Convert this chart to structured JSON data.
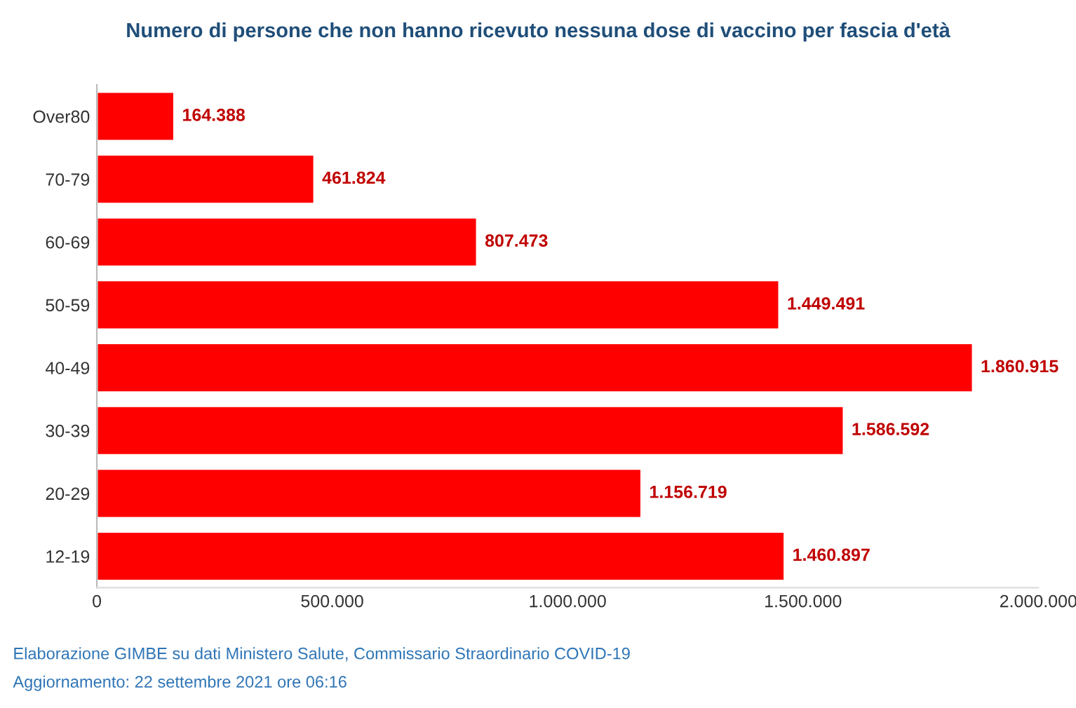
{
  "chart_data": {
    "type": "bar",
    "orientation": "horizontal",
    "title": "Numero di persone che non hanno ricevuto nessuna dose di vaccino per fascia d'età",
    "categories": [
      "Over80",
      "70-79",
      "60-69",
      "50-59",
      "40-49",
      "30-39",
      "20-29",
      "12-19"
    ],
    "values": [
      164388,
      461824,
      807473,
      1449491,
      1860915,
      1586592,
      1156719,
      1460897
    ],
    "value_labels": [
      "164.388",
      "461.824",
      "807.473",
      "1.449.491",
      "1.860.915",
      "1.586.592",
      "1.156.719",
      "1.460.897"
    ],
    "color": "#ff0000",
    "xlim": [
      0,
      2000000
    ],
    "xticks": [
      0,
      {
        "value": 500000,
        "label": "500.000"
      },
      {
        "value": 1000000,
        "label": "1.000.000"
      },
      {
        "value": 1500000,
        "label": "1.500.000"
      },
      {
        "value": 2000000,
        "label": "2.000.000"
      }
    ],
    "grid": false,
    "legend": false,
    "annotations": [
      "Elaborazione GIMBE su dati Ministero Salute, Commissario Straordinario COVID-19",
      "Aggiornamento: 22 settembre 2021 ore 06:16"
    ]
  }
}
